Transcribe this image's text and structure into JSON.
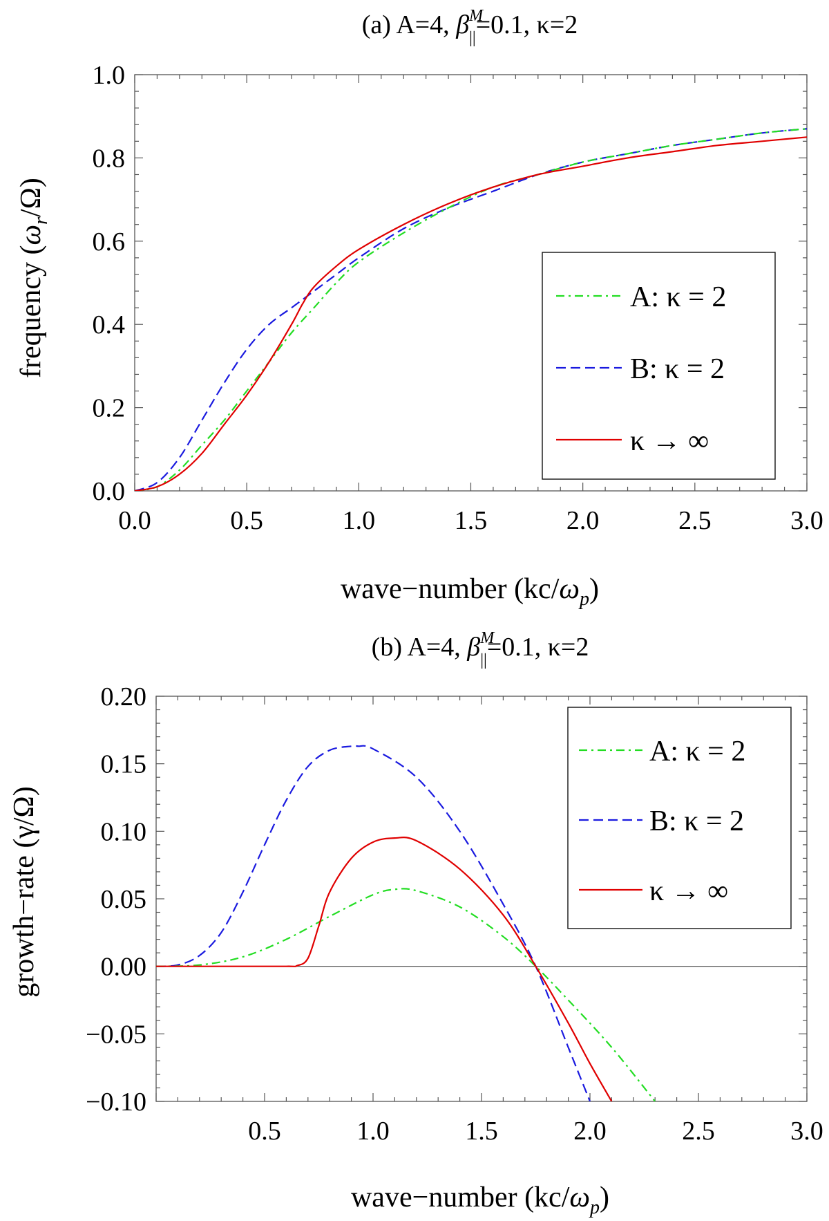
{
  "figure": {
    "panels": [
      {
        "title_prefix": "(a) A=4, ",
        "title_beta": "β",
        "title_beta_sub": "||",
        "title_beta_sup": "M",
        "title_suffix": "=0.1, κ=2",
        "ylabel_main": "frequency (",
        "ylabel_omega": "ω",
        "ylabel_sub": "r",
        "ylabel_rest": "/Ω)",
        "xlabel_main": "wave−number (kc/",
        "xlabel_omega": "ω",
        "xlabel_sub": "p",
        "xlabel_close": ")"
      },
      {
        "title_prefix": "(b) A=4, ",
        "title_beta": "β",
        "title_beta_sub": "||",
        "title_beta_sup": "M",
        "title_suffix": "=0.1, κ=2",
        "ylabel_main": "growth−rate (γ/Ω)",
        "xlabel_main": "wave−number (kc/",
        "xlabel_omega": "ω",
        "xlabel_sub": "p",
        "xlabel_close": ")"
      }
    ],
    "legend": [
      {
        "label": "A: κ = 2",
        "color": "#22dd22",
        "dash": "dashdot"
      },
      {
        "label": "B: κ = 2",
        "color": "#1a1adf",
        "dash": "dashed"
      },
      {
        "label": "κ → ∞",
        "color": "#e00000",
        "dash": "solid"
      }
    ]
  },
  "chart_data": [
    {
      "type": "line",
      "title": "(a) A=4, β||M=0.1, κ=2",
      "xlabel": "wave−number (kc/ωp)",
      "ylabel": "frequency (ωr/Ω)",
      "xlim": [
        0,
        3
      ],
      "ylim": [
        0,
        1
      ],
      "xticks": [
        "0.0",
        "0.5",
        "1.0",
        "1.5",
        "2.0",
        "2.5",
        "3.0"
      ],
      "yticks": [
        "0.0",
        "0.2",
        "0.4",
        "0.6",
        "0.8",
        "1.0"
      ],
      "grid": false,
      "legend_position": "right",
      "series": [
        {
          "name": "A: κ = 2",
          "x": [
            0,
            0.1,
            0.2,
            0.3,
            0.4,
            0.5,
            0.6,
            0.7,
            0.8,
            0.9,
            1.0,
            1.2,
            1.4,
            1.6,
            1.8,
            2.0,
            2.2,
            2.4,
            2.6,
            2.8,
            3.0
          ],
          "y": [
            0,
            0.01,
            0.05,
            0.11,
            0.17,
            0.24,
            0.31,
            0.38,
            0.44,
            0.5,
            0.55,
            0.62,
            0.68,
            0.73,
            0.76,
            0.79,
            0.81,
            0.83,
            0.845,
            0.86,
            0.87
          ]
        },
        {
          "name": "B: κ = 2",
          "x": [
            0,
            0.1,
            0.2,
            0.3,
            0.4,
            0.5,
            0.6,
            0.7,
            0.8,
            0.9,
            1.0,
            1.2,
            1.4,
            1.6,
            1.8,
            2.0,
            2.2,
            2.4,
            2.6,
            2.8,
            3.0
          ],
          "y": [
            0,
            0.02,
            0.08,
            0.17,
            0.26,
            0.34,
            0.4,
            0.44,
            0.48,
            0.52,
            0.56,
            0.63,
            0.68,
            0.72,
            0.76,
            0.79,
            0.81,
            0.83,
            0.845,
            0.86,
            0.87
          ]
        },
        {
          "name": "κ → ∞",
          "x": [
            0,
            0.1,
            0.2,
            0.3,
            0.4,
            0.5,
            0.6,
            0.7,
            0.75,
            0.8,
            0.9,
            1.0,
            1.2,
            1.4,
            1.6,
            1.8,
            2.0,
            2.2,
            2.4,
            2.6,
            2.8,
            3.0
          ],
          "y": [
            0,
            0.01,
            0.04,
            0.09,
            0.16,
            0.23,
            0.31,
            0.4,
            0.45,
            0.49,
            0.54,
            0.58,
            0.64,
            0.69,
            0.73,
            0.76,
            0.78,
            0.8,
            0.815,
            0.83,
            0.84,
            0.85
          ]
        }
      ]
    },
    {
      "type": "line",
      "title": "(b) A=4, β||M=0.1, κ=2",
      "xlabel": "wave−number (kc/ωp)",
      "ylabel": "growth−rate (γ/Ω)",
      "xlim": [
        0,
        3
      ],
      "ylim": [
        -0.1,
        0.2
      ],
      "xticks": [
        "0.5",
        "1.0",
        "1.5",
        "2.0",
        "2.5",
        "3.0"
      ],
      "yticks": [
        "−0.10",
        "−0.05",
        "0.00",
        "0.05",
        "0.10",
        "0.15",
        "0.20"
      ],
      "grid": false,
      "legend_position": "top-right",
      "series": [
        {
          "name": "A: κ = 2",
          "x": [
            0,
            0.2,
            0.4,
            0.6,
            0.8,
            1.0,
            1.1,
            1.2,
            1.4,
            1.6,
            1.75,
            1.9,
            2.1,
            2.3
          ],
          "y": [
            0,
            0.001,
            0.007,
            0.02,
            0.037,
            0.053,
            0.057,
            0.056,
            0.044,
            0.022,
            0.0,
            -0.025,
            -0.06,
            -0.1
          ]
        },
        {
          "name": "B: κ = 2",
          "x": [
            0,
            0.1,
            0.2,
            0.3,
            0.4,
            0.5,
            0.6,
            0.7,
            0.8,
            0.9,
            0.93,
            1.0,
            1.2,
            1.4,
            1.6,
            1.75,
            1.9,
            2.0
          ],
          "y": [
            0,
            0.001,
            0.008,
            0.025,
            0.055,
            0.09,
            0.123,
            0.148,
            0.16,
            0.163,
            0.163,
            0.161,
            0.14,
            0.1,
            0.046,
            0.0,
            -0.06,
            -0.1
          ]
        },
        {
          "name": "κ → ∞",
          "x": [
            0,
            0.3,
            0.6,
            0.65,
            0.7,
            0.75,
            0.8,
            0.9,
            1.0,
            1.1,
            1.2,
            1.4,
            1.6,
            1.75,
            1.9,
            2.0,
            2.1
          ],
          "y": [
            0,
            0,
            0,
            0.0005,
            0.006,
            0.03,
            0.055,
            0.08,
            0.092,
            0.095,
            0.093,
            0.072,
            0.038,
            0.0,
            -0.042,
            -0.072,
            -0.1
          ]
        }
      ]
    }
  ]
}
